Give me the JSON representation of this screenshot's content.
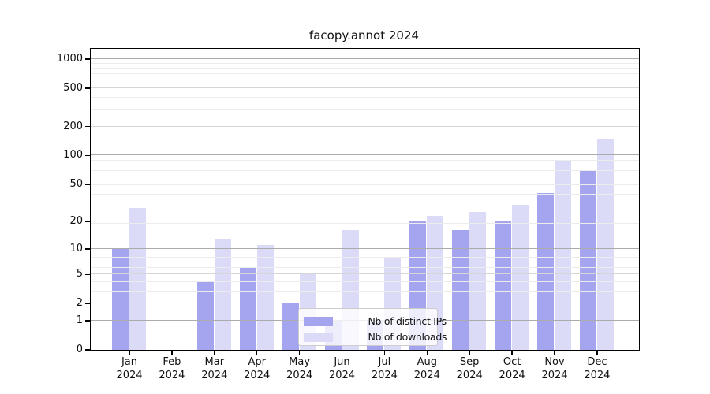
{
  "chart_data": {
    "type": "bar",
    "title": "facopy.annot 2024",
    "categories": [
      "Jan",
      "Feb",
      "Mar",
      "Apr",
      "May",
      "Jun",
      "Jul",
      "Aug",
      "Sep",
      "Oct",
      "Nov",
      "Dec"
    ],
    "category_year": "2024",
    "series": [
      {
        "name": "Nb of distinct IPs",
        "color": "#a4a4ef",
        "values": [
          10,
          0,
          4,
          6,
          2,
          1,
          1,
          20,
          16,
          20,
          40,
          70
        ]
      },
      {
        "name": "Nb of downloads",
        "color": "#dbdbf8",
        "values": [
          28,
          0,
          13,
          11,
          5,
          16,
          8,
          23,
          25,
          30,
          87,
          150
        ]
      }
    ],
    "y_axis": {
      "ticks": [
        0,
        1,
        2,
        5,
        10,
        20,
        50,
        100,
        200,
        500,
        1000
      ],
      "scale": "log10(value+1)",
      "ylim": [
        0,
        1270
      ]
    },
    "grid": "on",
    "legend_position": "lower-center"
  }
}
